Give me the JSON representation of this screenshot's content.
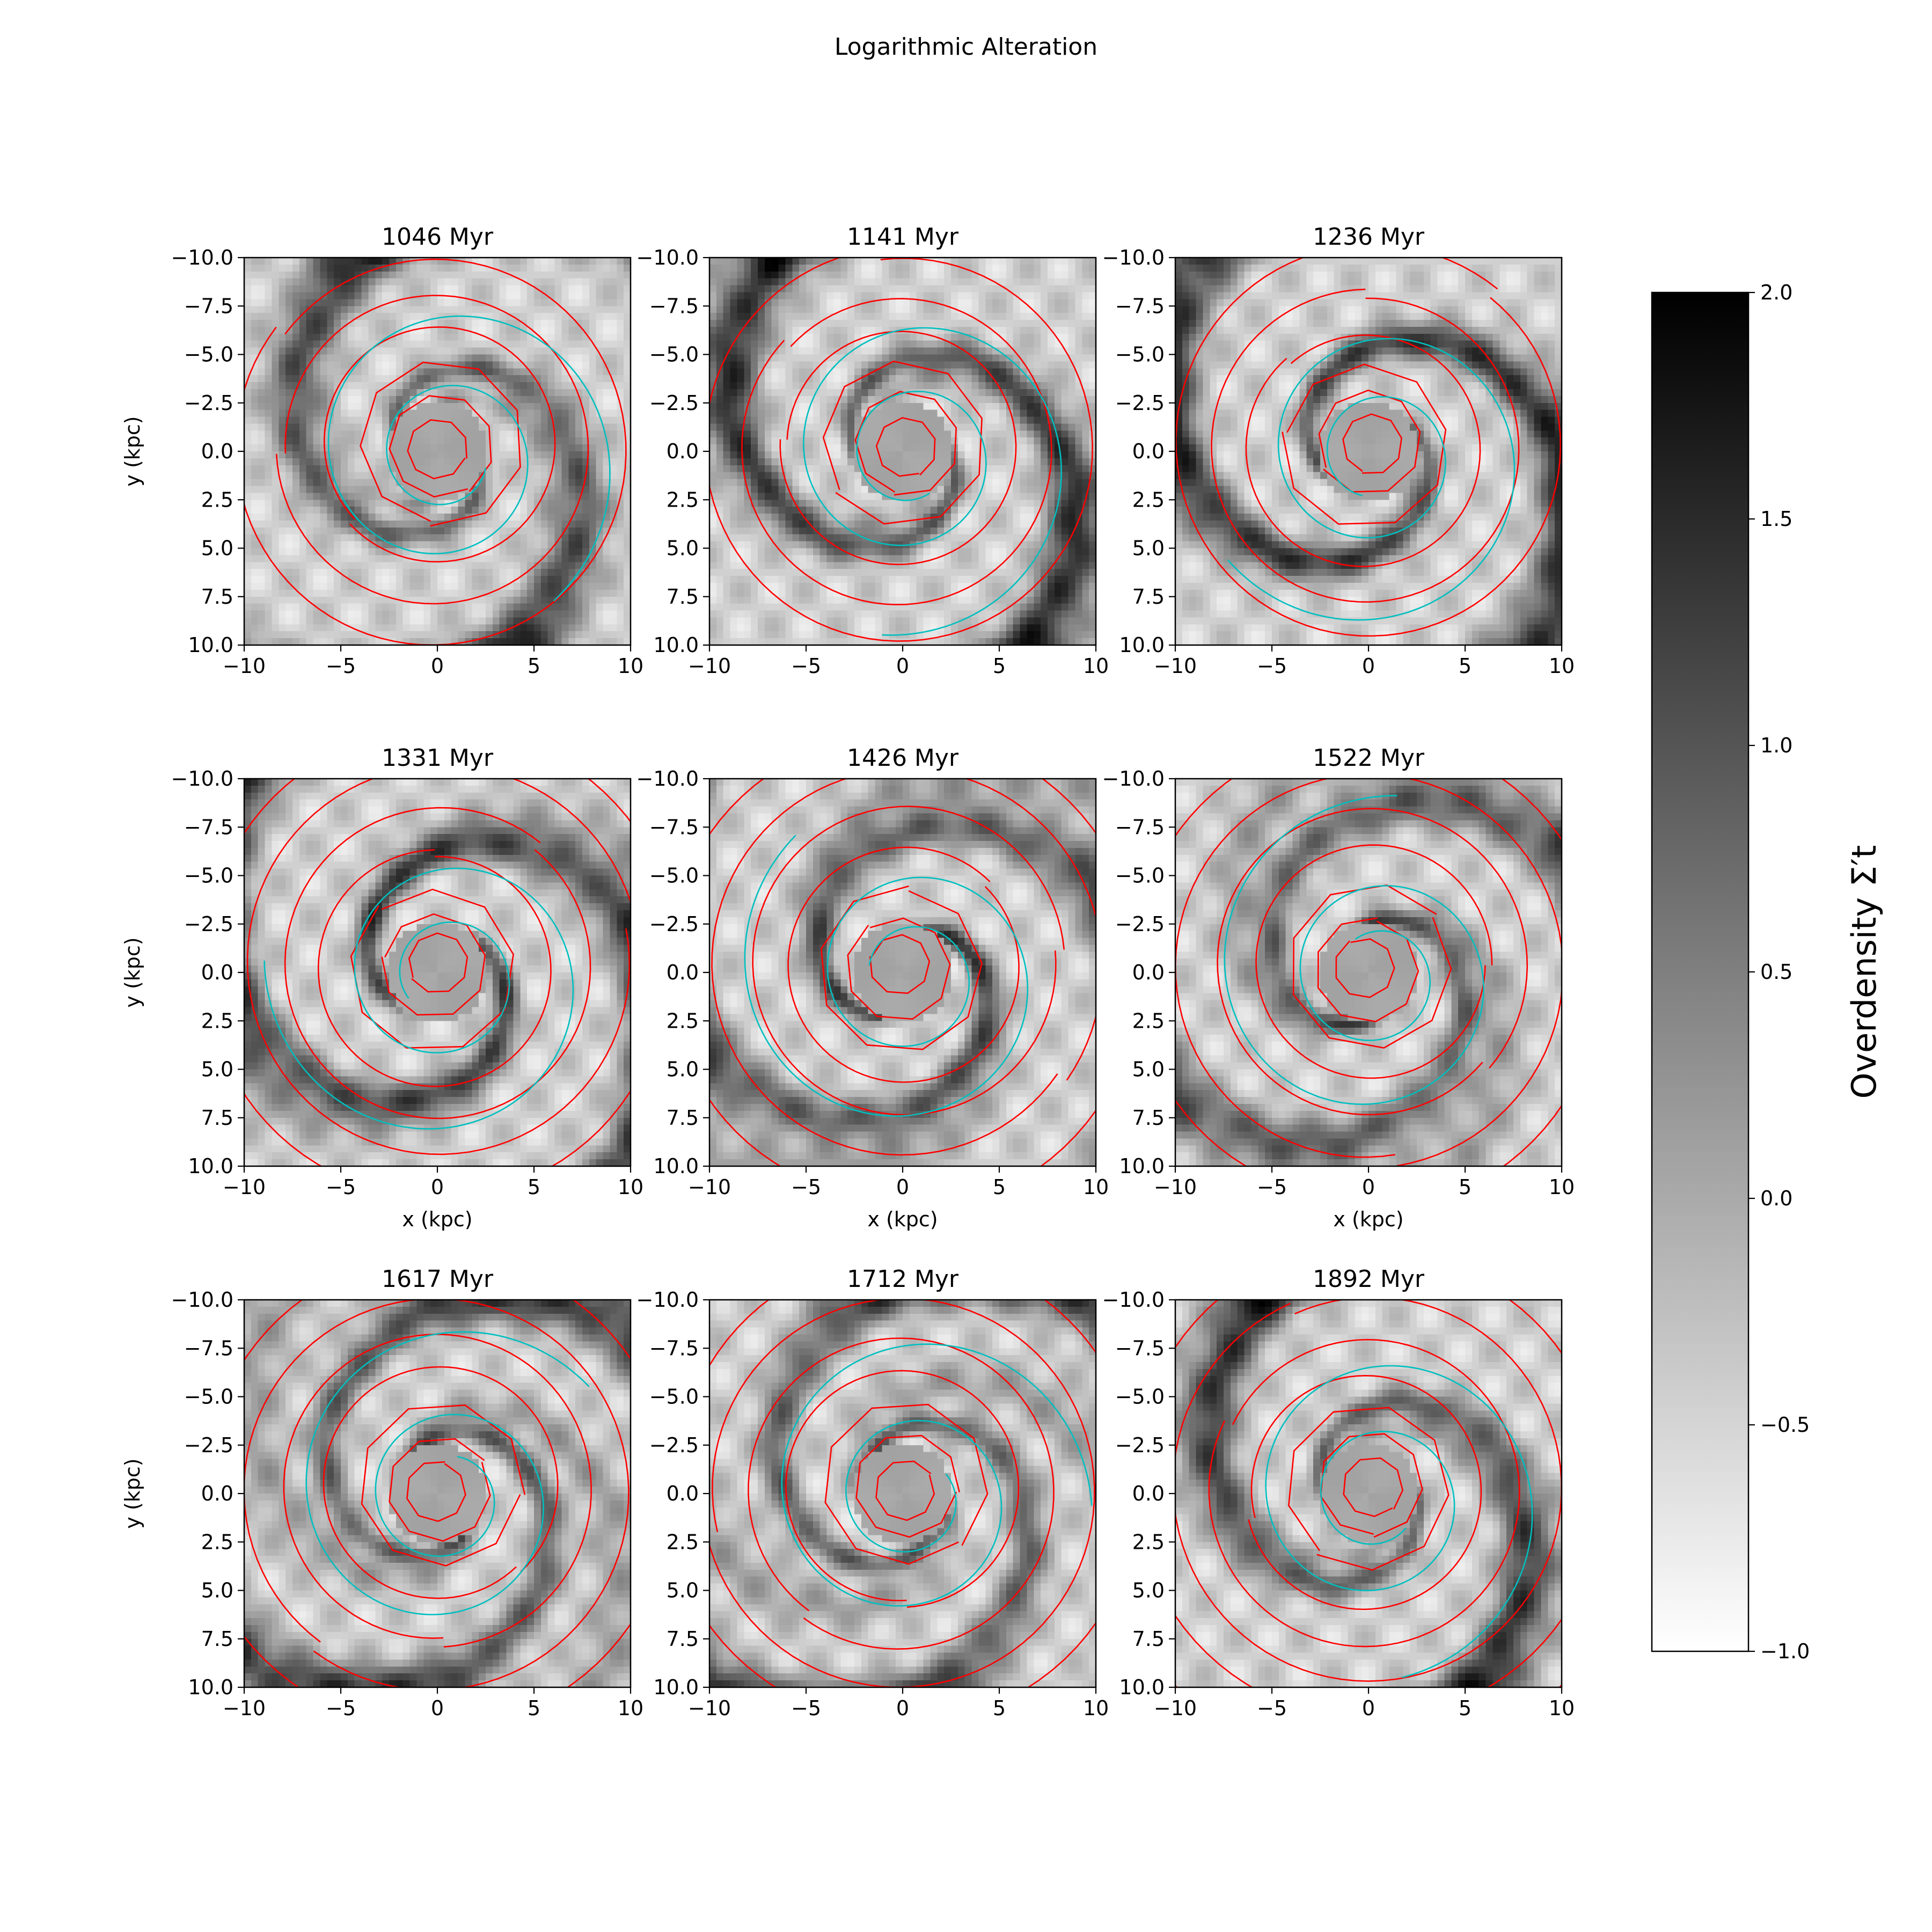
{
  "figure": {
    "title": "Logarithmic Alteration"
  },
  "chart_data": {
    "type": "heatmap",
    "title": "Logarithmic Alteration",
    "panels": [
      {
        "title": "1046 Myr",
        "rings": 6,
        "arm_phase": 0.3
      },
      {
        "title": "1141 Myr",
        "rings": 6,
        "arm_phase": 1.1
      },
      {
        "title": "1236 Myr",
        "rings": 6,
        "arm_phase": 1.9
      },
      {
        "title": "1331 Myr",
        "rings": 7,
        "arm_phase": 2.6
      },
      {
        "title": "1426 Myr",
        "rings": 7,
        "arm_phase": 3.4
      },
      {
        "title": "1522 Myr",
        "rings": 8,
        "arm_phase": 4.2
      },
      {
        "title": "1617 Myr",
        "rings": 8,
        "arm_phase": 5.0
      },
      {
        "title": "1712 Myr",
        "rings": 9,
        "arm_phase": 5.7
      },
      {
        "title": "1892 Myr",
        "rings": 9,
        "arm_phase": 0.8
      }
    ],
    "xlabel": "x (kpc)",
    "ylabel": "y (kpc)",
    "xlim": [
      -10,
      10
    ],
    "ylim": [
      10,
      -10
    ],
    "xticks": [
      "−10",
      "−5",
      "0",
      "5",
      "10"
    ],
    "yticks": [
      "−10.0",
      "−7.5",
      "−5.0",
      "−2.5",
      "0.0",
      "2.5",
      "5.0",
      "7.5",
      "10.0"
    ],
    "colorbar": {
      "label": "Overdensity Σ′t",
      "range": [
        -1.0,
        2.0
      ],
      "ticks": [
        "2.0",
        "1.5",
        "1.0",
        "0.5",
        "0.0",
        "−0.5",
        "−1.0"
      ],
      "colormap": "gray_r"
    },
    "overlay_colors": {
      "fit_spirals": "#ff0000",
      "model_spiral": "#00bfbf"
    }
  }
}
